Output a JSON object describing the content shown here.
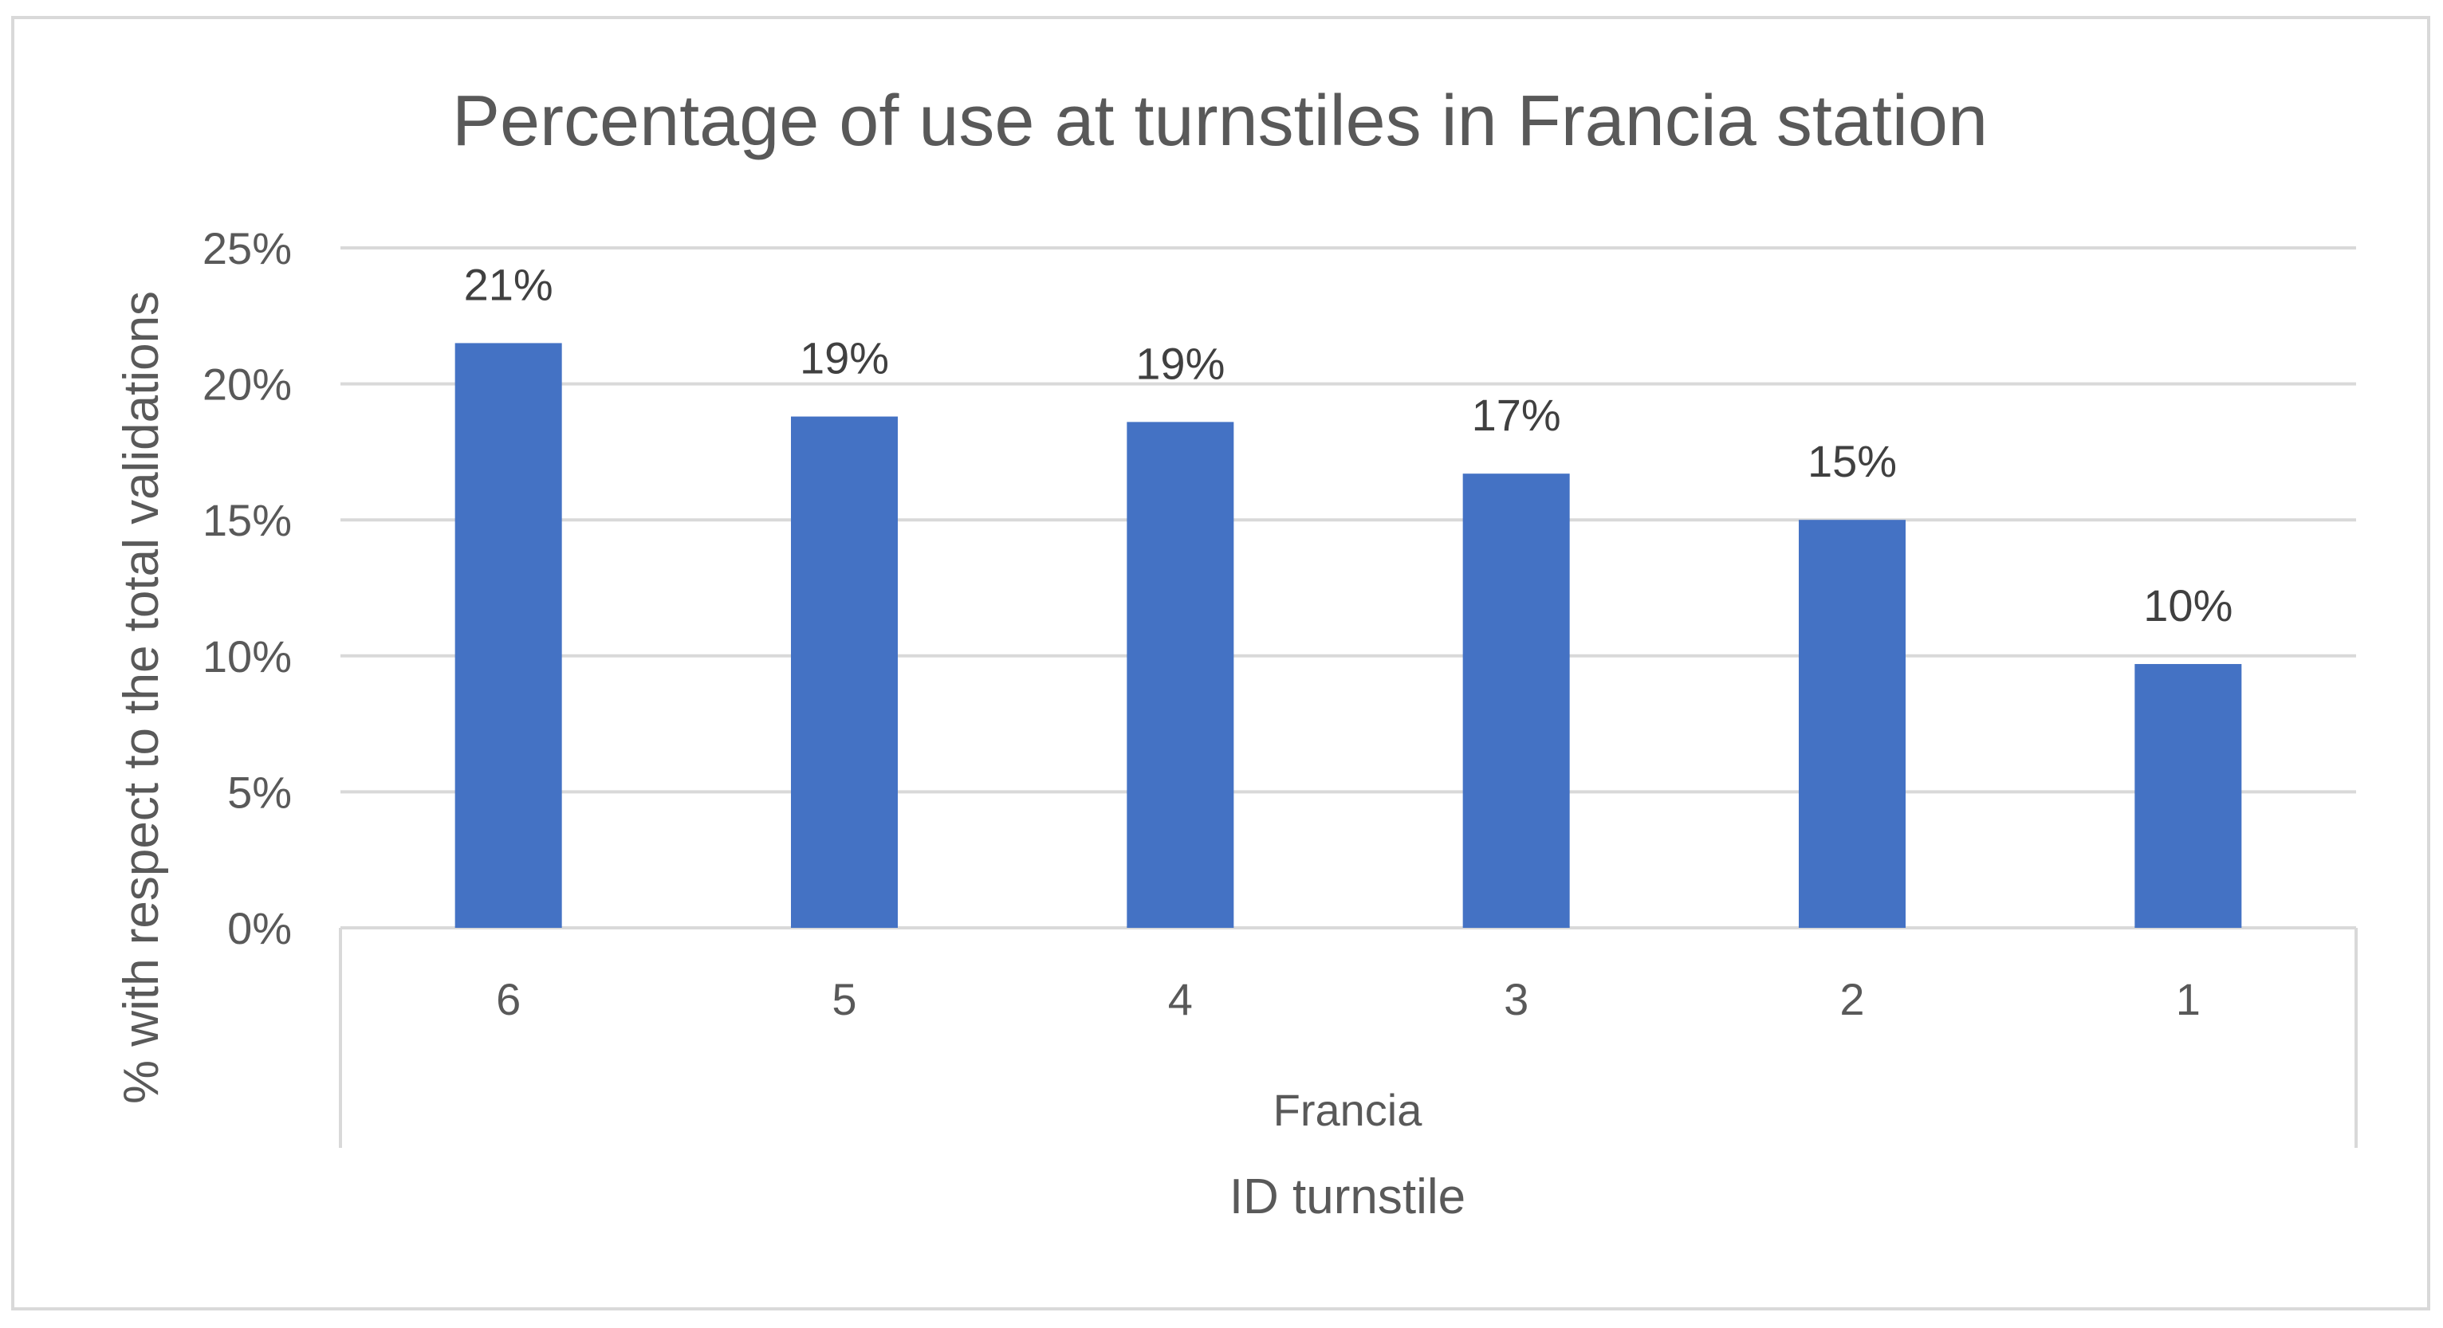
{
  "chart_data": {
    "type": "bar",
    "title": "Percentage of use at turnstiles in Francia station",
    "xlabel": "ID turnstile",
    "ylabel": "% with respect to the total validations",
    "group_label": "Francia",
    "categories": [
      "6",
      "5",
      "4",
      "3",
      "2",
      "1"
    ],
    "values": [
      21.5,
      18.8,
      18.6,
      16.7,
      15.0,
      9.7
    ],
    "data_labels": [
      "21%",
      "19%",
      "19%",
      "17%",
      "15%",
      "10%"
    ],
    "ylim": [
      0,
      25
    ],
    "yticks": [
      0,
      5,
      10,
      15,
      20,
      25
    ],
    "ytick_labels": [
      "0%",
      "5%",
      "10%",
      "15%",
      "20%",
      "25%"
    ],
    "grid": true,
    "legend": "none",
    "bar_color": "#4472C4",
    "grid_color": "#D9D9D9",
    "text_color": "#595959"
  }
}
